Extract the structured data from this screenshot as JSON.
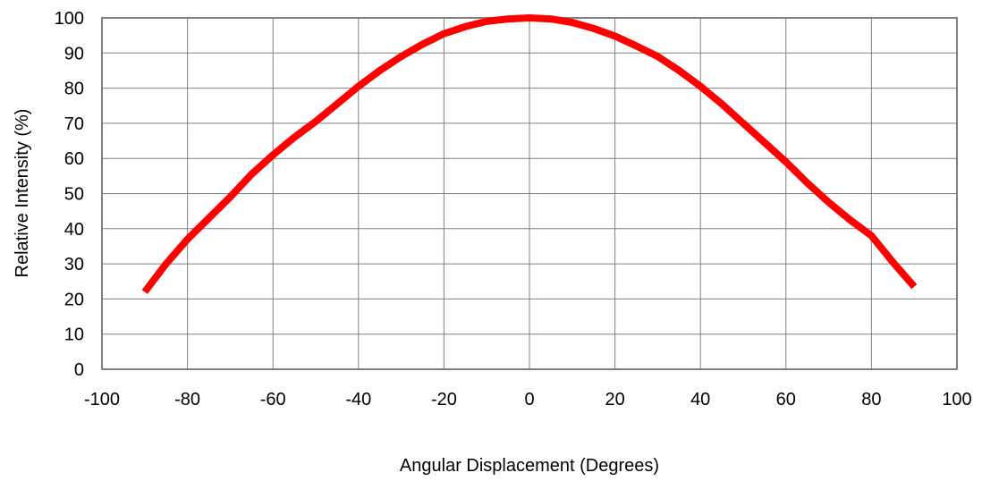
{
  "chart_data": {
    "type": "line",
    "title": "",
    "xlabel": "Angular Displacement (Degrees)",
    "ylabel": "Relative Intensity (%)",
    "xlim": [
      -100,
      100
    ],
    "ylim": [
      0,
      100
    ],
    "xticks": [
      -100,
      -80,
      -60,
      -40,
      -20,
      0,
      20,
      40,
      60,
      80,
      100
    ],
    "yticks": [
      0,
      10,
      20,
      30,
      40,
      50,
      60,
      70,
      80,
      90,
      100
    ],
    "grid": true,
    "legend": "none",
    "series": [
      {
        "color": "#ff0000",
        "x": [
          -90,
          -85,
          -80,
          -75,
          -70,
          -65,
          -60,
          -55,
          -50,
          -45,
          -40,
          -35,
          -30,
          -25,
          -20,
          -15,
          -10,
          -5,
          0,
          5,
          10,
          15,
          20,
          25,
          30,
          35,
          40,
          45,
          50,
          55,
          60,
          65,
          70,
          75,
          80,
          85,
          90
        ],
        "y": [
          22,
          30,
          37,
          43,
          49,
          55.5,
          61,
          66,
          70.5,
          75.5,
          80.5,
          85,
          89,
          92.5,
          95.5,
          97.5,
          99,
          99.7,
          100,
          99.7,
          98.7,
          97,
          94.8,
          92,
          89,
          85,
          80.5,
          75.5,
          70,
          64.5,
          59,
          53,
          47.5,
          42.5,
          38,
          30.5,
          23.5
        ]
      }
    ]
  }
}
